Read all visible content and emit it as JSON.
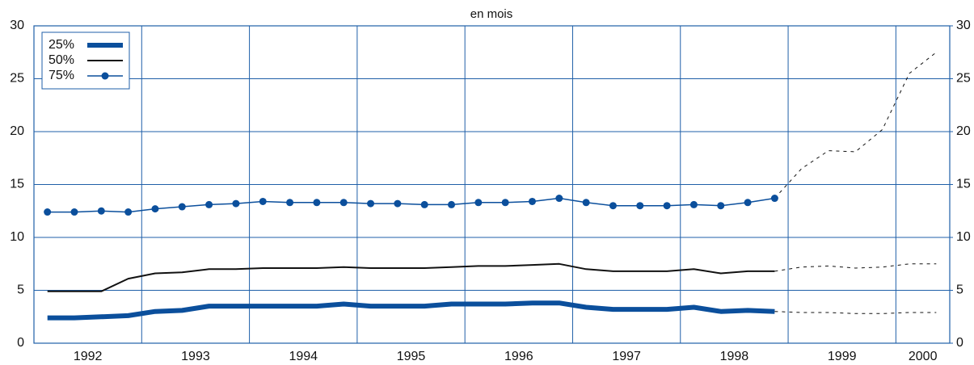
{
  "chart_data": {
    "type": "line",
    "title": "en mois",
    "x": [
      1992.125,
      1992.375,
      1992.625,
      1992.875,
      1993.125,
      1993.375,
      1993.625,
      1993.875,
      1994.125,
      1994.375,
      1994.625,
      1994.875,
      1995.125,
      1995.375,
      1995.625,
      1995.875,
      1996.125,
      1996.375,
      1996.625,
      1996.875,
      1997.125,
      1997.375,
      1997.625,
      1997.875,
      1998.125,
      1998.375,
      1998.625,
      1998.875,
      1999.125,
      1999.375,
      1999.625,
      1999.875,
      2000.125,
      2000.375
    ],
    "xlim": [
      1992,
      2000.5
    ],
    "xticks": [
      {
        "value": 1992,
        "label": "1992"
      },
      {
        "value": 1993,
        "label": "1993"
      },
      {
        "value": 1994,
        "label": "1994"
      },
      {
        "value": 1995,
        "label": "1995"
      },
      {
        "value": 1996,
        "label": "1996"
      },
      {
        "value": 1997,
        "label": "1997"
      },
      {
        "value": 1998,
        "label": "1998"
      },
      {
        "value": 1999,
        "label": "1999"
      },
      {
        "value": 2000,
        "label": "2000"
      }
    ],
    "ylim": [
      0,
      30
    ],
    "yticks": [
      0,
      5,
      10,
      15,
      20,
      25,
      30
    ],
    "y2lim": [
      0,
      30
    ],
    "y2ticks": [
      0,
      5,
      10,
      15,
      20,
      25,
      30
    ],
    "grid": true,
    "legend": "upper left",
    "series": [
      {
        "name": "25%",
        "color": "#0b4f9c",
        "line_width": 6,
        "marker": "none",
        "values": [
          2.4,
          2.4,
          2.5,
          2.6,
          3.0,
          3.1,
          3.5,
          3.5,
          3.5,
          3.5,
          3.5,
          3.7,
          3.5,
          3.5,
          3.5,
          3.7,
          3.7,
          3.7,
          3.8,
          3.8,
          3.4,
          3.2,
          3.2,
          3.2,
          3.4,
          3.0,
          3.1,
          3.0,
          null,
          null,
          null,
          null,
          null,
          null
        ],
        "projection": [
          null,
          null,
          null,
          null,
          null,
          null,
          null,
          null,
          null,
          null,
          null,
          null,
          null,
          null,
          null,
          null,
          null,
          null,
          null,
          null,
          null,
          null,
          null,
          null,
          null,
          null,
          null,
          3.0,
          2.9,
          2.9,
          2.8,
          2.8,
          2.9,
          2.9
        ]
      },
      {
        "name": "50%",
        "color": "#111111",
        "line_width": 2,
        "marker": "none",
        "values": [
          4.9,
          4.9,
          4.9,
          6.1,
          6.6,
          6.7,
          7.0,
          7.0,
          7.1,
          7.1,
          7.1,
          7.2,
          7.1,
          7.1,
          7.1,
          7.2,
          7.3,
          7.3,
          7.4,
          7.5,
          7.0,
          6.8,
          6.8,
          6.8,
          7.0,
          6.6,
          6.8,
          6.8,
          null,
          null,
          null,
          null,
          null,
          null
        ],
        "projection": [
          null,
          null,
          null,
          null,
          null,
          null,
          null,
          null,
          null,
          null,
          null,
          null,
          null,
          null,
          null,
          null,
          null,
          null,
          null,
          null,
          null,
          null,
          null,
          null,
          null,
          null,
          null,
          6.8,
          7.2,
          7.3,
          7.1,
          7.2,
          7.5,
          7.5
        ]
      },
      {
        "name": "75%",
        "color": "#0b4f9c",
        "line_width": 1.5,
        "marker": "circle",
        "values": [
          12.4,
          12.4,
          12.5,
          12.4,
          12.7,
          12.9,
          13.1,
          13.2,
          13.4,
          13.3,
          13.3,
          13.3,
          13.2,
          13.2,
          13.1,
          13.1,
          13.3,
          13.3,
          13.4,
          13.7,
          13.3,
          13.0,
          13.0,
          13.0,
          13.1,
          13.0,
          13.3,
          13.7,
          null,
          null,
          null,
          null,
          null,
          null
        ],
        "projection": [
          null,
          null,
          null,
          null,
          null,
          null,
          null,
          null,
          null,
          null,
          null,
          null,
          null,
          null,
          null,
          null,
          null,
          null,
          null,
          null,
          null,
          null,
          null,
          null,
          null,
          null,
          null,
          13.7,
          16.5,
          18.2,
          18.1,
          20.2,
          25.5,
          27.5
        ]
      }
    ]
  }
}
